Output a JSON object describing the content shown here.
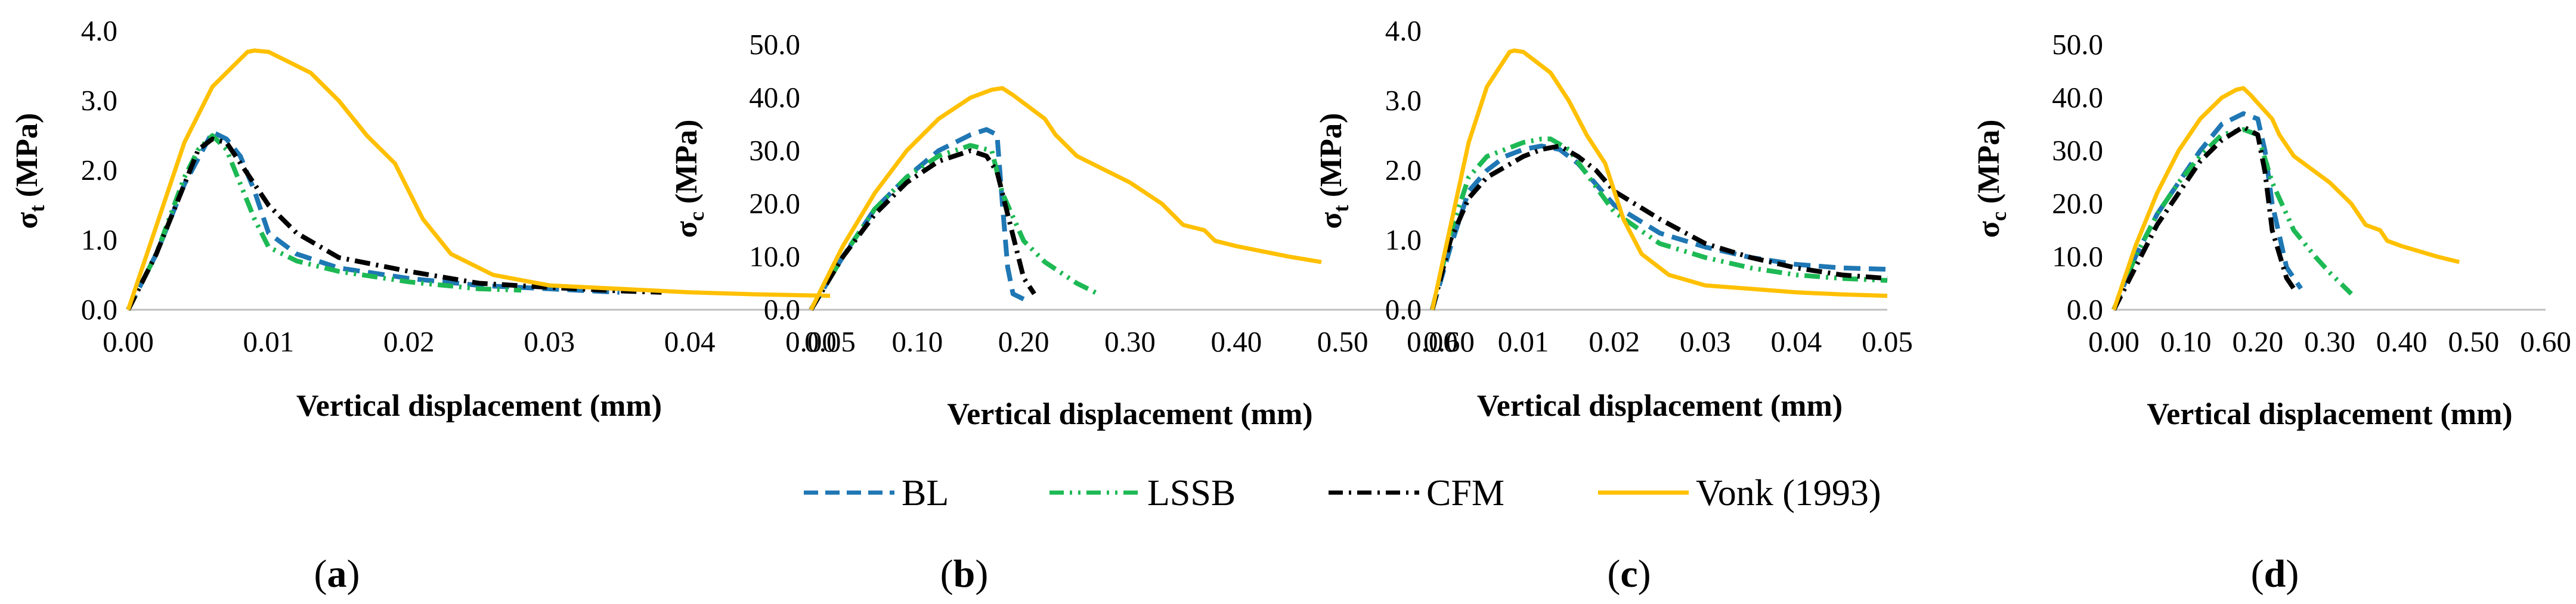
{
  "legend": {
    "items": [
      {
        "name": "BL",
        "color": "#1f77b4",
        "dash": "blue-dash"
      },
      {
        "name": "LSSB",
        "color": "#1db954",
        "dash": "green-dashdotdot"
      },
      {
        "name": "CFM",
        "color": "#000000",
        "dash": "black-dashdot"
      },
      {
        "name": "Vonk (1993)",
        "color": "#ffc000",
        "dash": "solid"
      }
    ]
  },
  "chart_data": [
    {
      "panel": "a",
      "type": "line",
      "xlabel": "Vertical displacement (mm)",
      "ylabel_main": "σ",
      "ylabel_sub": "t",
      "ylabel_unit": " (MPa)",
      "xlim": [
        0,
        0.05
      ],
      "ylim": [
        0,
        4.0
      ],
      "xticks": [
        "0.00",
        "0.01",
        "0.02",
        "0.03",
        "0.04",
        "0.05"
      ],
      "yticks": [
        "0.0",
        "1.0",
        "2.0",
        "3.0",
        "4.0"
      ],
      "series": [
        {
          "name": "BL",
          "x": [
            0,
            0.002,
            0.004,
            0.006,
            0.007,
            0.008,
            0.009,
            0.01,
            0.012,
            0.015,
            0.02,
            0.025,
            0.03,
            0.035
          ],
          "y": [
            0,
            0.8,
            1.8,
            2.55,
            2.45,
            2.2,
            1.7,
            1.1,
            0.8,
            0.6,
            0.45,
            0.35,
            0.3,
            0.25
          ]
        },
        {
          "name": "LSSB",
          "x": [
            0,
            0.002,
            0.004,
            0.005,
            0.006,
            0.007,
            0.008,
            0.009,
            0.01,
            0.012,
            0.015,
            0.02,
            0.025,
            0.028
          ],
          "y": [
            0,
            0.8,
            1.9,
            2.3,
            2.5,
            2.3,
            1.8,
            1.3,
            0.9,
            0.7,
            0.55,
            0.4,
            0.3,
            0.28
          ]
        },
        {
          "name": "CFM",
          "x": [
            0,
            0.002,
            0.004,
            0.005,
            0.006,
            0.007,
            0.008,
            0.009,
            0.01,
            0.012,
            0.015,
            0.02,
            0.025,
            0.03,
            0.035,
            0.038
          ],
          "y": [
            0,
            0.8,
            1.8,
            2.3,
            2.45,
            2.4,
            2.1,
            1.8,
            1.5,
            1.1,
            0.75,
            0.55,
            0.38,
            0.32,
            0.27,
            0.25
          ]
        },
        {
          "name": "Vonk (1993)",
          "x": [
            0,
            0.002,
            0.004,
            0.006,
            0.008,
            0.0085,
            0.009,
            0.01,
            0.011,
            0.013,
            0.015,
            0.017,
            0.019,
            0.021,
            0.023,
            0.026,
            0.03,
            0.035,
            0.04,
            0.045,
            0.05
          ],
          "y": [
            0,
            1.2,
            2.4,
            3.2,
            3.6,
            3.7,
            3.72,
            3.7,
            3.6,
            3.4,
            3.0,
            2.5,
            2.1,
            1.3,
            0.8,
            0.5,
            0.35,
            0.3,
            0.25,
            0.22,
            0.2
          ]
        }
      ]
    },
    {
      "panel": "b",
      "type": "line",
      "xlabel": "Vertical displacement (mm)",
      "ylabel_main": "σ",
      "ylabel_sub": "c",
      "ylabel_unit": " (MPa)",
      "xlim": [
        0,
        0.6
      ],
      "ylim": [
        0,
        50
      ],
      "xticks": [
        "0.00",
        "0.10",
        "0.20",
        "0.30",
        "0.40",
        "0.50",
        "0.60"
      ],
      "yticks": [
        "0.0",
        "10.0",
        "20.0",
        "30.0",
        "40.0",
        "50.0"
      ],
      "series": [
        {
          "name": "BL",
          "x": [
            0,
            0.03,
            0.06,
            0.09,
            0.12,
            0.15,
            0.165,
            0.175,
            0.18,
            0.185,
            0.19,
            0.2
          ],
          "y": [
            0,
            10,
            19,
            25,
            30,
            33,
            34,
            33,
            20,
            8,
            3,
            2
          ]
        },
        {
          "name": "LSSB",
          "x": [
            0,
            0.03,
            0.06,
            0.09,
            0.12,
            0.15,
            0.17,
            0.18,
            0.2,
            0.22,
            0.25,
            0.27
          ],
          "y": [
            0,
            10,
            19,
            25,
            29,
            31,
            30,
            22,
            13,
            9,
            5,
            3
          ]
        },
        {
          "name": "CFM",
          "x": [
            0,
            0.03,
            0.06,
            0.09,
            0.12,
            0.15,
            0.165,
            0.175,
            0.19,
            0.2,
            0.21
          ],
          "y": [
            0,
            10,
            18,
            24,
            28,
            30,
            29,
            26,
            14,
            6,
            3
          ]
        },
        {
          "name": "Vonk (1993)",
          "x": [
            0,
            0.03,
            0.06,
            0.09,
            0.12,
            0.15,
            0.17,
            0.18,
            0.19,
            0.2,
            0.22,
            0.23,
            0.25,
            0.3,
            0.33,
            0.35,
            0.37,
            0.38,
            0.4,
            0.45,
            0.48
          ],
          "y": [
            0,
            12,
            22,
            30,
            36,
            40,
            41.5,
            41.8,
            40.5,
            39,
            36,
            33,
            29,
            24,
            20,
            16,
            15,
            13,
            12,
            10,
            9
          ]
        }
      ]
    },
    {
      "panel": "c",
      "type": "line",
      "xlabel": "Vertical displacement (mm)",
      "ylabel_main": "σ",
      "ylabel_sub": "t",
      "ylabel_unit": " (MPa)",
      "xlim": [
        0,
        0.05
      ],
      "ylim": [
        0,
        4.0
      ],
      "xticks": [
        "0.00",
        "0.01",
        "0.02",
        "0.03",
        "0.04",
        "0.05"
      ],
      "yticks": [
        "0.0",
        "1.0",
        "2.0",
        "3.0",
        "4.0"
      ],
      "series": [
        {
          "name": "BL",
          "x": [
            0,
            0.002,
            0.004,
            0.006,
            0.008,
            0.01,
            0.012,
            0.014,
            0.016,
            0.02,
            0.025,
            0.03,
            0.035,
            0.04,
            0.045,
            0.05
          ],
          "y": [
            0,
            0.9,
            1.7,
            2.0,
            2.2,
            2.3,
            2.35,
            2.3,
            2.1,
            1.5,
            1.1,
            0.9,
            0.75,
            0.65,
            0.6,
            0.58
          ]
        },
        {
          "name": "LSSB",
          "x": [
            0,
            0.002,
            0.004,
            0.006,
            0.008,
            0.01,
            0.012,
            0.013,
            0.015,
            0.02,
            0.025,
            0.03,
            0.035,
            0.04,
            0.045,
            0.05
          ],
          "y": [
            0,
            1.1,
            1.9,
            2.2,
            2.3,
            2.4,
            2.45,
            2.45,
            2.3,
            1.4,
            0.95,
            0.75,
            0.6,
            0.5,
            0.45,
            0.42
          ]
        },
        {
          "name": "CFM",
          "x": [
            0,
            0.002,
            0.004,
            0.006,
            0.008,
            0.01,
            0.012,
            0.014,
            0.016,
            0.018,
            0.02,
            0.025,
            0.03,
            0.035,
            0.04,
            0.045,
            0.05
          ],
          "y": [
            0,
            1.0,
            1.6,
            1.9,
            2.05,
            2.2,
            2.3,
            2.35,
            2.2,
            2.0,
            1.7,
            1.3,
            0.95,
            0.75,
            0.6,
            0.5,
            0.45
          ]
        },
        {
          "name": "Vonk (1993)",
          "x": [
            0,
            0.002,
            0.004,
            0.006,
            0.008,
            0.0085,
            0.009,
            0.01,
            0.011,
            0.013,
            0.015,
            0.017,
            0.019,
            0.021,
            0.023,
            0.026,
            0.03,
            0.035,
            0.04,
            0.045,
            0.05
          ],
          "y": [
            0,
            1.2,
            2.4,
            3.2,
            3.6,
            3.7,
            3.72,
            3.7,
            3.6,
            3.4,
            3.0,
            2.5,
            2.1,
            1.3,
            0.8,
            0.5,
            0.35,
            0.3,
            0.25,
            0.22,
            0.2
          ]
        }
      ]
    },
    {
      "panel": "d",
      "type": "line",
      "xlabel": "Vertical displacement (mm)",
      "ylabel_main": "σ",
      "ylabel_sub": "c",
      "ylabel_unit": " (MPa)",
      "xlim": [
        0,
        0.6
      ],
      "ylim": [
        0,
        50
      ],
      "xticks": [
        "0.00",
        "0.10",
        "0.20",
        "0.30",
        "0.40",
        "0.50",
        "0.60"
      ],
      "yticks": [
        "0.0",
        "10.0",
        "20.0",
        "30.0",
        "40.0",
        "50.0"
      ],
      "series": [
        {
          "name": "BL",
          "x": [
            0,
            0.03,
            0.06,
            0.09,
            0.12,
            0.15,
            0.18,
            0.2,
            0.21,
            0.22,
            0.24,
            0.26
          ],
          "y": [
            0,
            10,
            18,
            24,
            30,
            35,
            37,
            36,
            30,
            20,
            8,
            4
          ]
        },
        {
          "name": "LSSB",
          "x": [
            0,
            0.03,
            0.06,
            0.09,
            0.12,
            0.15,
            0.18,
            0.2,
            0.22,
            0.25,
            0.28,
            0.3,
            0.33
          ],
          "y": [
            0,
            10,
            18,
            24,
            29,
            33,
            34,
            33,
            24,
            15,
            10,
            7,
            3
          ]
        },
        {
          "name": "CFM",
          "x": [
            0,
            0.03,
            0.06,
            0.09,
            0.12,
            0.15,
            0.18,
            0.2,
            0.21,
            0.22,
            0.24,
            0.25
          ],
          "y": [
            0,
            8,
            16,
            22,
            28,
            32,
            34.5,
            33,
            26,
            15,
            6,
            4
          ]
        },
        {
          "name": "Vonk (1993)",
          "x": [
            0,
            0.03,
            0.06,
            0.09,
            0.12,
            0.15,
            0.17,
            0.18,
            0.19,
            0.2,
            0.22,
            0.23,
            0.25,
            0.3,
            0.33,
            0.35,
            0.37,
            0.38,
            0.4,
            0.45,
            0.48
          ],
          "y": [
            0,
            12,
            22,
            30,
            36,
            40,
            41.5,
            41.8,
            40.5,
            39,
            36,
            33,
            29,
            24,
            20,
            16,
            15,
            13,
            12,
            10,
            9
          ]
        }
      ]
    }
  ],
  "panel_labels": [
    {
      "open": "(",
      "letter": "a",
      "close": ")"
    },
    {
      "open": "(",
      "letter": "b",
      "close": ")"
    },
    {
      "open": "(",
      "letter": "c",
      "close": ")"
    },
    {
      "open": "(",
      "letter": "d",
      "close": ")"
    }
  ]
}
